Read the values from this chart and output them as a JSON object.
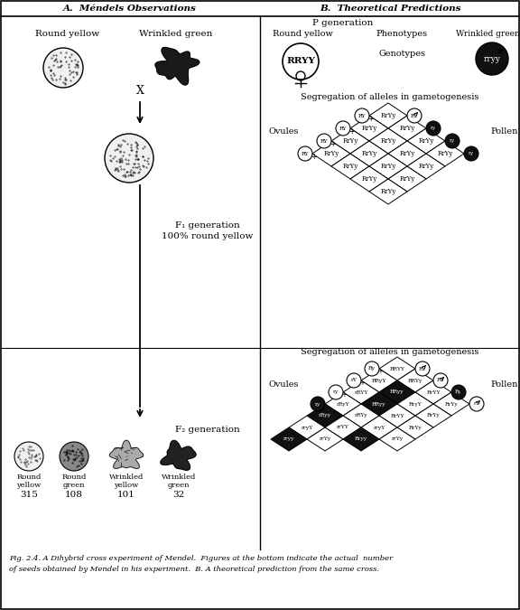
{
  "title_left": "A.  Méndels Observations",
  "title_right": "B.  Theoretical Predictions",
  "p_gen": "P generation",
  "f1_gen_line1": "F₁ generation",
  "f1_gen_line2": "100% round yellow",
  "f2_gen": "F₂ generation",
  "round_yellow_label": "Round yellow",
  "wrinkled_green_label": "Wrinkled green",
  "round_green_label": "Round\ngreen",
  "wrinkled_yellow_label": "Wrinkled\nyellow",
  "round_yellow_label2": "Round\nyellow",
  "wrinkled_green_label2": "Wrinkled\ngreen",
  "counts": [
    "315",
    "108",
    "101",
    "32"
  ],
  "caption_line1": "Fig. 2.4. A Dihybrid cross experiment of Mendel.  Figures at the bottom indicate the actual  number",
  "caption_line2": "of seeds obtained by Mendel in his experiment.  B. A theoretical prediction from the same cross.",
  "seg_label": "Segregation of alleles in gametogenesis",
  "ovules": "Ovules",
  "pollen": "Pollen",
  "p_phenotype": "Phenotypes",
  "p_genotype": "Genotypes",
  "rryy_label": "rryy",
  "RRYY_label": "RRYY",
  "bg_color": "#ffffff",
  "fg_color": "#000000",
  "f1_labels": [
    [
      "RrYy",
      "RrYy",
      "RrYy",
      "RrYy"
    ],
    [
      "RrYy",
      "RrYy",
      "RrYy",
      "RrYy"
    ],
    [
      "RrYy",
      "RrYy",
      "RrYy",
      "RrYy"
    ],
    [
      "RrYy",
      "RrYy",
      "RrYy",
      "RrYy"
    ]
  ],
  "f1_dark": [
    [
      false,
      false,
      false,
      false
    ],
    [
      false,
      false,
      false,
      false
    ],
    [
      false,
      false,
      false,
      false
    ],
    [
      false,
      false,
      false,
      false
    ]
  ],
  "f1_ovule_labels": [
    "RY",
    "RY",
    "RY",
    "RY"
  ],
  "f1_ovule_dark": [
    false,
    false,
    false,
    false
  ],
  "f1_pollen_labels": [
    "RY",
    "ry",
    "ry",
    "ry"
  ],
  "f1_pollen_dark": [
    false,
    true,
    true,
    true
  ],
  "f2_labels": [
    [
      "RRYY",
      "RRYy",
      "RrYY",
      "RrYy"
    ],
    [
      "RRyY",
      "RRyy",
      "RryY",
      "RrYy"
    ],
    [
      "rRYY",
      "RRyy",
      "RrYY",
      "RrYy"
    ],
    [
      "rRyY",
      "rRYy",
      "rryY",
      "rrYy"
    ],
    [
      "rRyy",
      "rrYY",
      "Rryy",
      ""
    ],
    [
      "rryY",
      "rrYy",
      "",
      ""
    ],
    [
      "rryy",
      "",
      "",
      ""
    ]
  ],
  "f2_dark": [
    [
      false,
      false,
      false,
      false
    ],
    [
      false,
      true,
      false,
      false
    ],
    [
      false,
      true,
      false,
      false
    ],
    [
      false,
      false,
      false,
      false
    ],
    [
      true,
      false,
      true,
      false
    ],
    [
      false,
      false,
      false,
      false
    ],
    [
      true,
      false,
      false,
      false
    ]
  ],
  "f2_ovule_labels": [
    "Ry",
    "rY",
    "ry"
  ],
  "f2_ovule_dark": [
    false,
    false,
    false
  ],
  "f2_pollen_labels": [
    "RY",
    "RY",
    "Ry",
    "rY"
  ],
  "f2_pollen_dark": [
    false,
    false,
    true,
    false
  ]
}
